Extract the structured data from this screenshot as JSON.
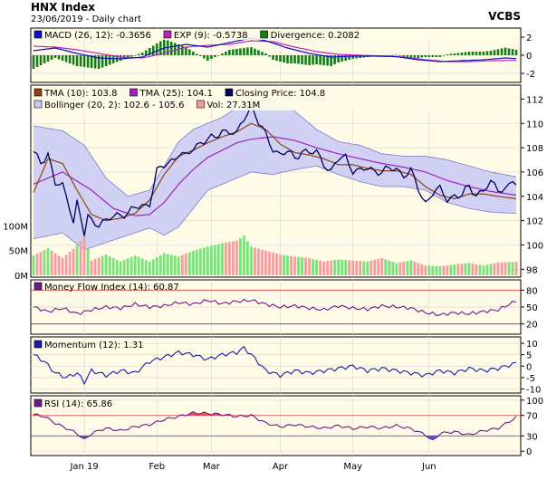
{
  "header": {
    "title": "HNX Index",
    "subtitle": "23/06/2019 - Daily chart",
    "source": "VCBS"
  },
  "colors": {
    "panel_bg": "#fffbe6",
    "border": "#000000",
    "grid": "#d9d9d9",
    "macd": "#1010c0",
    "exp": "#c020c0",
    "divergence": "#1a7a1a",
    "tma10": "#8b4513",
    "tma25": "#a020c0",
    "close": "#000060",
    "bollinger_fill": "#c9c9f4",
    "bollinger_line": "#7a7ad8",
    "vol_up": "#7fe07f",
    "vol_down": "#f0a0a0",
    "mfi": "#6a1a8a",
    "momentum": "#1a1aaa",
    "rsi": "#6a1a8a",
    "rsi_over": "#e04040",
    "rsi_under": "#4040d0"
  },
  "x_axis": {
    "labels": [
      "Jan 19",
      "Feb",
      "Mar",
      "Apr",
      "May",
      "Jun"
    ],
    "label_index": [
      14,
      34,
      49,
      68,
      88,
      109
    ],
    "bars": 134
  },
  "panels": {
    "macd": {
      "legend": [
        {
          "icon": "macd",
          "text": "MACD (26, 12): -0.3656"
        },
        {
          "icon": "exp",
          "text": "EXP (9): -0.5738"
        },
        {
          "icon": "divergence",
          "text": "Divergence: 0.2082"
        }
      ],
      "yticks": [
        "2",
        "0",
        "-2"
      ],
      "ylim": [
        -2.8,
        2.8
      ]
    },
    "price": {
      "legend_row1": [
        {
          "icon": "tma10",
          "text": "TMA (10): 103.8"
        },
        {
          "icon": "tma25",
          "text": "TMA (25): 104.1"
        },
        {
          "icon": "close",
          "text": "Closing Price: 104.8"
        }
      ],
      "legend_row2": [
        {
          "icon": "bollinger",
          "text": "Bollinger (20, 2): 102.6 - 105.6"
        },
        {
          "icon": "vol",
          "text": "Vol: 27.31M"
        }
      ],
      "yticks": [
        "112",
        "110",
        "108",
        "106",
        "104",
        "102",
        "100",
        "98"
      ],
      "vol_ticks": [
        "100M",
        "50M",
        "0M"
      ],
      "ylim": [
        97.5,
        113
      ]
    },
    "mfi": {
      "legend": [
        {
          "icon": "mfi",
          "text": "Money Flow Index (14): 60.87"
        }
      ],
      "yticks": [
        "80",
        "50",
        "20"
      ],
      "ylim": [
        5,
        95
      ]
    },
    "momentum": {
      "legend": [
        {
          "icon": "momentum",
          "text": "Momentum (12): 1.31"
        }
      ],
      "yticks": [
        "10",
        "5",
        "0",
        "-5",
        "-10"
      ],
      "ylim": [
        -11,
        12
      ]
    },
    "rsi": {
      "legend": [
        {
          "icon": "rsi",
          "text": "RSI (14): 65.86"
        }
      ],
      "yticks": [
        "100",
        "70",
        "30",
        "0"
      ],
      "ylim": [
        -5,
        105
      ]
    }
  },
  "chart_data": {
    "type": "line",
    "title": "HNX Index",
    "close_keypoints": [
      [
        0,
        107.5
      ],
      [
        2,
        106.8
      ],
      [
        4,
        107.6
      ],
      [
        6,
        105
      ],
      [
        8,
        104.8
      ],
      [
        10,
        103.2
      ],
      [
        11,
        102
      ],
      [
        12,
        103.5
      ],
      [
        14,
        100.8
      ],
      [
        15,
        102.3
      ],
      [
        16,
        102
      ],
      [
        18,
        101.8
      ],
      [
        20,
        101.9
      ],
      [
        22,
        102.3
      ],
      [
        24,
        102.6
      ],
      [
        26,
        102.6
      ],
      [
        28,
        103
      ],
      [
        30,
        103.2
      ],
      [
        32,
        103.5
      ],
      [
        34,
        106
      ],
      [
        36,
        106.5
      ],
      [
        38,
        107
      ],
      [
        40,
        107.5
      ],
      [
        42,
        107.2
      ],
      [
        44,
        108
      ],
      [
        46,
        108.5
      ],
      [
        48,
        108.6
      ],
      [
        50,
        108.8
      ],
      [
        52,
        109.5
      ],
      [
        54,
        109.3
      ],
      [
        56,
        109
      ],
      [
        58,
        110.5
      ],
      [
        60,
        111.5
      ],
      [
        62,
        110
      ],
      [
        64,
        109
      ],
      [
        66,
        108
      ],
      [
        68,
        107.4
      ],
      [
        70,
        107.6
      ],
      [
        72,
        107.2
      ],
      [
        74,
        107.8
      ],
      [
        76,
        107.5
      ],
      [
        78,
        107.6
      ],
      [
        80,
        106.8
      ],
      [
        82,
        106
      ],
      [
        84,
        107
      ],
      [
        86,
        107.3
      ],
      [
        88,
        106.2
      ],
      [
        90,
        106
      ],
      [
        92,
        106.3
      ],
      [
        94,
        106.2
      ],
      [
        96,
        106
      ],
      [
        98,
        106.2
      ],
      [
        100,
        106.3
      ],
      [
        102,
        105.8
      ],
      [
        104,
        106
      ],
      [
        106,
        104.6
      ],
      [
        108,
        103.5
      ],
      [
        110,
        104.3
      ],
      [
        112,
        104.5
      ],
      [
        114,
        103.8
      ],
      [
        116,
        104.1
      ],
      [
        118,
        104
      ],
      [
        120,
        104.8
      ],
      [
        122,
        104.2
      ],
      [
        124,
        104.5
      ],
      [
        126,
        105
      ],
      [
        128,
        104.7
      ],
      [
        130,
        104.6
      ],
      [
        132,
        105.3
      ],
      [
        133,
        104.8
      ]
    ],
    "tma10_keypoints": [
      [
        0,
        104.3
      ],
      [
        4,
        107.1
      ],
      [
        8,
        106.7
      ],
      [
        12,
        104.5
      ],
      [
        16,
        102.5
      ],
      [
        20,
        102
      ],
      [
        24,
        102.2
      ],
      [
        28,
        102.6
      ],
      [
        32,
        103.7
      ],
      [
        36,
        105.8
      ],
      [
        40,
        107.3
      ],
      [
        44,
        107.8
      ],
      [
        48,
        108.4
      ],
      [
        52,
        108.9
      ],
      [
        56,
        109.3
      ],
      [
        60,
        110
      ],
      [
        64,
        109.5
      ],
      [
        68,
        108.3
      ],
      [
        72,
        107.6
      ],
      [
        76,
        107.4
      ],
      [
        80,
        107.1
      ],
      [
        84,
        106.6
      ],
      [
        88,
        106.6
      ],
      [
        92,
        106.3
      ],
      [
        96,
        106.1
      ],
      [
        100,
        106.1
      ],
      [
        104,
        105.8
      ],
      [
        108,
        104.8
      ],
      [
        112,
        104.1
      ],
      [
        116,
        103.8
      ],
      [
        120,
        104.2
      ],
      [
        124,
        104.2
      ],
      [
        128,
        104
      ],
      [
        133,
        103.8
      ]
    ],
    "tma25_keypoints": [
      [
        0,
        105
      ],
      [
        8,
        106
      ],
      [
        16,
        104.5
      ],
      [
        22,
        103
      ],
      [
        28,
        102.4
      ],
      [
        32,
        102.5
      ],
      [
        36,
        103.5
      ],
      [
        40,
        105
      ],
      [
        44,
        106.2
      ],
      [
        48,
        107.2
      ],
      [
        52,
        107.8
      ],
      [
        56,
        108.4
      ],
      [
        60,
        108.7
      ],
      [
        66,
        108.9
      ],
      [
        72,
        108.6
      ],
      [
        78,
        108
      ],
      [
        84,
        107.5
      ],
      [
        90,
        107.1
      ],
      [
        96,
        106.7
      ],
      [
        102,
        106.4
      ],
      [
        108,
        106
      ],
      [
        114,
        105.3
      ],
      [
        120,
        104.8
      ],
      [
        126,
        104.4
      ],
      [
        133,
        104.1
      ]
    ],
    "bollinger_upper_keypoints": [
      [
        0,
        109.8
      ],
      [
        8,
        109.4
      ],
      [
        14,
        108.2
      ],
      [
        20,
        105.5
      ],
      [
        26,
        104
      ],
      [
        32,
        104.5
      ],
      [
        36,
        106.5
      ],
      [
        40,
        108.5
      ],
      [
        44,
        109.5
      ],
      [
        48,
        110
      ],
      [
        52,
        110.5
      ],
      [
        56,
        111.3
      ],
      [
        60,
        111.8
      ],
      [
        66,
        112
      ],
      [
        72,
        111
      ],
      [
        78,
        109.5
      ],
      [
        84,
        108.5
      ],
      [
        90,
        108.2
      ],
      [
        96,
        107.5
      ],
      [
        102,
        107.3
      ],
      [
        108,
        107.3
      ],
      [
        114,
        107
      ],
      [
        120,
        106.5
      ],
      [
        126,
        106
      ],
      [
        133,
        105.6
      ]
    ],
    "bollinger_lower_keypoints": [
      [
        0,
        100.5
      ],
      [
        8,
        101
      ],
      [
        14,
        99.6
      ],
      [
        20,
        100.2
      ],
      [
        26,
        100.8
      ],
      [
        32,
        101.4
      ],
      [
        36,
        100.8
      ],
      [
        40,
        101.5
      ],
      [
        44,
        103
      ],
      [
        48,
        104.5
      ],
      [
        52,
        105
      ],
      [
        56,
        105.5
      ],
      [
        60,
        106
      ],
      [
        66,
        105.8
      ],
      [
        72,
        106.2
      ],
      [
        78,
        106.5
      ],
      [
        84,
        105.8
      ],
      [
        90,
        105.2
      ],
      [
        96,
        104.8
      ],
      [
        102,
        104.8
      ],
      [
        108,
        104.5
      ],
      [
        114,
        103.5
      ],
      [
        120,
        103
      ],
      [
        126,
        102.7
      ],
      [
        133,
        102.6
      ]
    ],
    "volume_keypoints": [
      [
        0,
        40
      ],
      [
        4,
        55
      ],
      [
        8,
        35
      ],
      [
        12,
        60
      ],
      [
        14,
        78
      ],
      [
        16,
        30
      ],
      [
        20,
        42
      ],
      [
        24,
        28
      ],
      [
        28,
        40
      ],
      [
        32,
        28
      ],
      [
        36,
        45
      ],
      [
        40,
        38
      ],
      [
        44,
        50
      ],
      [
        48,
        58
      ],
      [
        52,
        65
      ],
      [
        56,
        70
      ],
      [
        58,
        80
      ],
      [
        60,
        58
      ],
      [
        64,
        50
      ],
      [
        68,
        42
      ],
      [
        72,
        38
      ],
      [
        76,
        35
      ],
      [
        80,
        28
      ],
      [
        84,
        32
      ],
      [
        88,
        30
      ],
      [
        92,
        28
      ],
      [
        96,
        35
      ],
      [
        100,
        25
      ],
      [
        104,
        30
      ],
      [
        108,
        20
      ],
      [
        112,
        18
      ],
      [
        116,
        22
      ],
      [
        120,
        25
      ],
      [
        124,
        20
      ],
      [
        128,
        26
      ],
      [
        133,
        27
      ]
    ],
    "volume_ylim": [
      0,
      110
    ],
    "macd_keypoints": [
      [
        0,
        0.5
      ],
      [
        6,
        0.8
      ],
      [
        12,
        0.2
      ],
      [
        18,
        -0.3
      ],
      [
        24,
        -0.4
      ],
      [
        30,
        -0.2
      ],
      [
        36,
        0.8
      ],
      [
        42,
        1.2
      ],
      [
        48,
        0.9
      ],
      [
        54,
        1.4
      ],
      [
        60,
        1.9
      ],
      [
        64,
        1.6
      ],
      [
        70,
        0.8
      ],
      [
        76,
        0.2
      ],
      [
        82,
        -0.2
      ],
      [
        88,
        -0.1
      ],
      [
        94,
        -0.1
      ],
      [
        100,
        -0.15
      ],
      [
        106,
        -0.5
      ],
      [
        112,
        -0.7
      ],
      [
        118,
        -0.6
      ],
      [
        124,
        -0.5
      ],
      [
        130,
        -0.3
      ],
      [
        133,
        -0.37
      ]
    ],
    "exp_keypoints": [
      [
        0,
        1
      ],
      [
        6,
        0.9
      ],
      [
        12,
        0.6
      ],
      [
        18,
        0.2
      ],
      [
        24,
        -0.2
      ],
      [
        30,
        -0.3
      ],
      [
        36,
        0.2
      ],
      [
        42,
        0.9
      ],
      [
        48,
        1.1
      ],
      [
        54,
        1.2
      ],
      [
        60,
        1.6
      ],
      [
        66,
        1.5
      ],
      [
        72,
        0.9
      ],
      [
        78,
        0.4
      ],
      [
        84,
        0.1
      ],
      [
        90,
        0
      ],
      [
        96,
        -0.1
      ],
      [
        102,
        -0.2
      ],
      [
        108,
        -0.5
      ],
      [
        114,
        -0.7
      ],
      [
        120,
        -0.7
      ],
      [
        126,
        -0.6
      ],
      [
        133,
        -0.57
      ]
    ],
    "mfi_keypoints": [
      [
        0,
        50
      ],
      [
        4,
        42
      ],
      [
        8,
        48
      ],
      [
        12,
        38
      ],
      [
        16,
        45
      ],
      [
        20,
        50
      ],
      [
        24,
        48
      ],
      [
        28,
        55
      ],
      [
        32,
        50
      ],
      [
        36,
        52
      ],
      [
        40,
        58
      ],
      [
        44,
        55
      ],
      [
        48,
        62
      ],
      [
        52,
        56
      ],
      [
        56,
        60
      ],
      [
        60,
        62
      ],
      [
        64,
        55
      ],
      [
        68,
        50
      ],
      [
        72,
        52
      ],
      [
        76,
        48
      ],
      [
        80,
        45
      ],
      [
        84,
        52
      ],
      [
        88,
        48
      ],
      [
        92,
        46
      ],
      [
        96,
        52
      ],
      [
        100,
        50
      ],
      [
        104,
        48
      ],
      [
        108,
        40
      ],
      [
        112,
        36
      ],
      [
        116,
        40
      ],
      [
        120,
        38
      ],
      [
        124,
        42
      ],
      [
        128,
        45
      ],
      [
        133,
        61
      ]
    ],
    "momentum_keypoints": [
      [
        0,
        5
      ],
      [
        3,
        2
      ],
      [
        6,
        -3
      ],
      [
        9,
        -5
      ],
      [
        12,
        -3
      ],
      [
        14,
        -7
      ],
      [
        16,
        -2
      ],
      [
        20,
        -4
      ],
      [
        24,
        -2
      ],
      [
        28,
        -3
      ],
      [
        32,
        2
      ],
      [
        36,
        4
      ],
      [
        40,
        6
      ],
      [
        44,
        5
      ],
      [
        48,
        3
      ],
      [
        52,
        5
      ],
      [
        56,
        6
      ],
      [
        58,
        8
      ],
      [
        60,
        5
      ],
      [
        64,
        -2
      ],
      [
        68,
        -4
      ],
      [
        72,
        -2
      ],
      [
        76,
        -3
      ],
      [
        80,
        -2
      ],
      [
        84,
        -1
      ],
      [
        88,
        0
      ],
      [
        92,
        -2
      ],
      [
        96,
        -1
      ],
      [
        100,
        -2
      ],
      [
        104,
        -3
      ],
      [
        108,
        -4
      ],
      [
        112,
        -2
      ],
      [
        116,
        -3
      ],
      [
        120,
        -1
      ],
      [
        124,
        -2
      ],
      [
        128,
        -1
      ],
      [
        133,
        1.3
      ]
    ],
    "rsi_keypoints": [
      [
        0,
        72
      ],
      [
        3,
        68
      ],
      [
        6,
        55
      ],
      [
        9,
        45
      ],
      [
        12,
        35
      ],
      [
        14,
        22
      ],
      [
        16,
        35
      ],
      [
        20,
        45
      ],
      [
        24,
        40
      ],
      [
        28,
        48
      ],
      [
        32,
        52
      ],
      [
        36,
        62
      ],
      [
        40,
        68
      ],
      [
        44,
        75
      ],
      [
        48,
        74
      ],
      [
        52,
        72
      ],
      [
        56,
        68
      ],
      [
        60,
        70
      ],
      [
        64,
        55
      ],
      [
        68,
        48
      ],
      [
        72,
        52
      ],
      [
        76,
        48
      ],
      [
        80,
        45
      ],
      [
        84,
        50
      ],
      [
        88,
        44
      ],
      [
        92,
        48
      ],
      [
        96,
        45
      ],
      [
        100,
        50
      ],
      [
        104,
        44
      ],
      [
        108,
        32
      ],
      [
        110,
        20
      ],
      [
        112,
        35
      ],
      [
        116,
        38
      ],
      [
        120,
        32
      ],
      [
        124,
        40
      ],
      [
        128,
        45
      ],
      [
        133,
        66
      ]
    ]
  }
}
